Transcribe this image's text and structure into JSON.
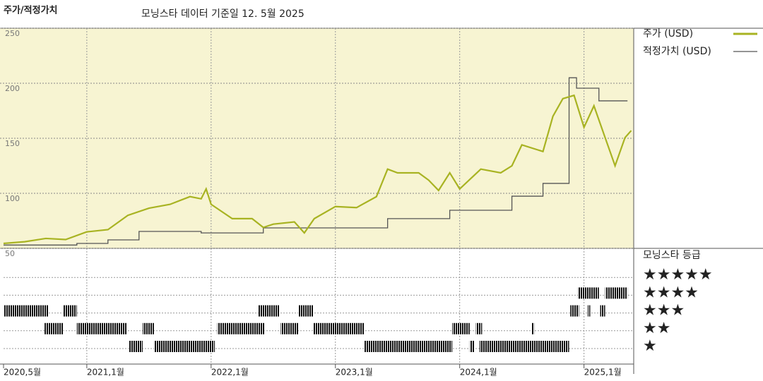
{
  "chart_data": {
    "type": "line",
    "title": "주가/적정가치",
    "subtitle": "모닝스타 데이터 기준일 12. 5월 2025",
    "xlim": [
      2020.33,
      2025.4
    ],
    "xticks": [
      {
        "value": 2020.33,
        "label": "2020,5월"
      },
      {
        "value": 2021.0,
        "label": "2021,1월"
      },
      {
        "value": 2022.0,
        "label": "2022,1월"
      },
      {
        "value": 2023.0,
        "label": "2023,1월"
      },
      {
        "value": 2024.0,
        "label": "2024,1월"
      },
      {
        "value": 2025.0,
        "label": "2025,1월"
      }
    ],
    "ylim": [
      50,
      250
    ],
    "yticks": [
      50,
      100,
      150,
      200,
      250
    ],
    "grid": true,
    "series": [
      {
        "name": "주가 (USD)",
        "color": "#a8b322",
        "step": false,
        "x": [
          2020.33,
          2020.5,
          2020.67,
          2020.83,
          2021.0,
          2021.17,
          2021.33,
          2021.5,
          2021.67,
          2021.83,
          2021.92,
          2021.96,
          2022.0,
          2022.17,
          2022.33,
          2022.42,
          2022.5,
          2022.67,
          2022.75,
          2022.83,
          2023.0,
          2023.17,
          2023.33,
          2023.42,
          2023.5,
          2023.67,
          2023.75,
          2023.83,
          2023.92,
          2024.0,
          2024.17,
          2024.33,
          2024.42,
          2024.5,
          2024.67,
          2024.75,
          2024.83,
          2024.92,
          2025.0,
          2025.08,
          2025.17,
          2025.25,
          2025.33,
          2025.38
        ],
        "values": [
          54.5,
          56,
          59,
          58,
          65,
          67,
          80,
          86.5,
          90,
          97,
          95,
          104,
          90,
          77,
          77,
          69,
          72,
          74,
          64,
          77,
          88,
          87,
          97,
          122,
          118.6,
          118.6,
          112,
          102.6,
          118.6,
          104,
          122,
          118.6,
          125,
          144,
          138,
          170,
          186,
          189,
          160,
          179.5,
          150.6,
          125,
          150.6,
          157
        ]
      },
      {
        "name": "적정가치 (USD)",
        "color": "#555555",
        "step": true,
        "x": [
          2020.33,
          2020.92,
          2021.17,
          2021.42,
          2021.92,
          2022.42,
          2023.42,
          2023.92,
          2024.42,
          2024.67,
          2024.88,
          2024.94,
          2025.12,
          2025.35
        ],
        "values": [
          53,
          54.5,
          57.7,
          65.4,
          64,
          68.6,
          77,
          84.6,
          97.4,
          109,
          205,
          195.5,
          184,
          184
        ]
      }
    ],
    "rating_title": "모닝스타 등급",
    "rating_levels": [
      {
        "value": 5,
        "label": "★★★★★"
      },
      {
        "value": 4,
        "label": "★★★★"
      },
      {
        "value": 3,
        "label": "★★★"
      },
      {
        "value": 2,
        "label": "★★"
      },
      {
        "value": 1,
        "label": "★"
      }
    ],
    "rating_periods": [
      {
        "rating": 3,
        "start": 2020.33,
        "end": 2020.69
      },
      {
        "rating": 2,
        "start": 2020.66,
        "end": 2020.81
      },
      {
        "rating": 3,
        "start": 2020.81,
        "end": 2020.92
      },
      {
        "rating": 2,
        "start": 2020.92,
        "end": 2021.32
      },
      {
        "rating": 1,
        "start": 2021.34,
        "end": 2021.45
      },
      {
        "rating": 2,
        "start": 2021.45,
        "end": 2021.54
      },
      {
        "rating": 1,
        "start": 2021.54,
        "end": 2022.03
      },
      {
        "rating": 2,
        "start": 2022.05,
        "end": 2022.43
      },
      {
        "rating": 3,
        "start": 2022.38,
        "end": 2022.55
      },
      {
        "rating": 2,
        "start": 2022.56,
        "end": 2022.7
      },
      {
        "rating": 3,
        "start": 2022.7,
        "end": 2022.82
      },
      {
        "rating": 2,
        "start": 2022.82,
        "end": 2023.23
      },
      {
        "rating": 1,
        "start": 2023.23,
        "end": 2023.94
      },
      {
        "rating": 2,
        "start": 2023.94,
        "end": 2024.08
      },
      {
        "rating": 1,
        "start": 2024.08,
        "end": 2024.12
      },
      {
        "rating": 2,
        "start": 2024.13,
        "end": 2024.18
      },
      {
        "rating": 1,
        "start": 2024.16,
        "end": 2024.88
      },
      {
        "rating": 2,
        "start": 2024.58,
        "end": 2024.6
      },
      {
        "rating": 3,
        "start": 2024.89,
        "end": 2024.96
      },
      {
        "rating": 4,
        "start": 2024.95,
        "end": 2025.12
      },
      {
        "rating": 3,
        "start": 2025.03,
        "end": 2025.05
      },
      {
        "rating": 3,
        "start": 2025.13,
        "end": 2025.17
      },
      {
        "rating": 4,
        "start": 2025.17,
        "end": 2025.35
      }
    ]
  }
}
